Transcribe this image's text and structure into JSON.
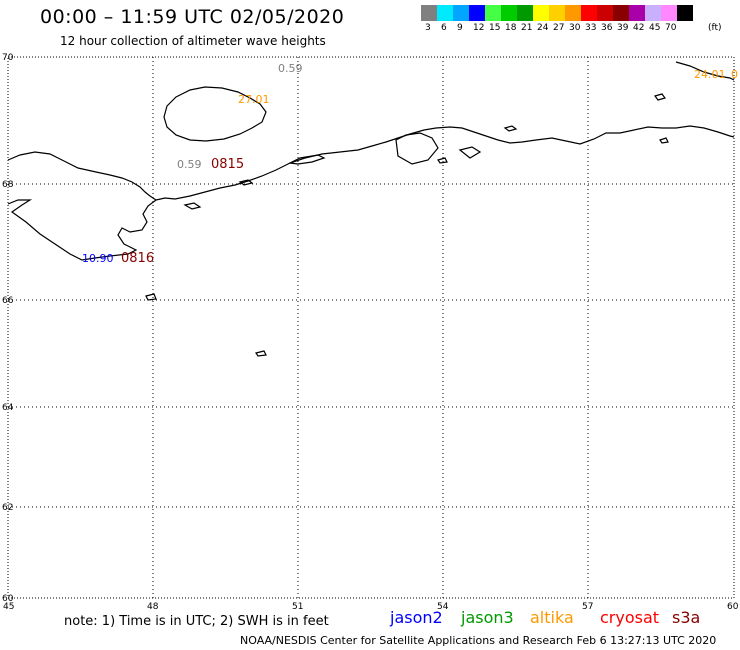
{
  "header": {
    "title": "00:00 – 11:59 UTC 02/05/2020",
    "subtitle": "12 hour collection of altimeter wave heights"
  },
  "legend": {
    "unit": "(ft)",
    "swatches": [
      {
        "label": "3",
        "color": "#808080"
      },
      {
        "label": "6",
        "color": "#00eaff"
      },
      {
        "label": "9",
        "color": "#00a6ff"
      },
      {
        "label": "12",
        "color": "#0000ff"
      },
      {
        "label": "15",
        "color": "#44ff44"
      },
      {
        "label": "18",
        "color": "#00cc00"
      },
      {
        "label": "21",
        "color": "#009900"
      },
      {
        "label": "24",
        "color": "#ffff00"
      },
      {
        "label": "27",
        "color": "#ffd000"
      },
      {
        "label": "30",
        "color": "#ff9900"
      },
      {
        "label": "33",
        "color": "#ff0000"
      },
      {
        "label": "36",
        "color": "#cc0000"
      },
      {
        "label": "39",
        "color": "#880000"
      },
      {
        "label": "42",
        "color": "#aa00aa"
      },
      {
        "label": "45",
        "color": "#c8b0ff"
      },
      {
        "label": "70",
        "color": "#ff88ff"
      },
      {
        "label": "",
        "color": "#000000"
      }
    ]
  },
  "map": {
    "lat_labels": [
      "70",
      "68",
      "66",
      "64",
      "62",
      "60"
    ],
    "lon_labels": [
      "45",
      "48",
      "51",
      "54",
      "57",
      "60"
    ],
    "annotations": [
      {
        "text": "0.59",
        "color": "#808080"
      },
      {
        "text": "27.01",
        "color": "#ff9900"
      },
      {
        "text": "0.59",
        "color": "#808080"
      },
      {
        "text": "0815",
        "color": "#880000"
      },
      {
        "text": "10.90",
        "color": "#0000ff"
      },
      {
        "text": "0816",
        "color": "#880000"
      },
      {
        "text": "24.01",
        "color": "#ff9900"
      },
      {
        "text": "0",
        "color": "#ff9900"
      }
    ]
  },
  "footer": {
    "note": "note: 1) Time is in UTC; 2) SWH is in feet",
    "satellites": [
      {
        "name": "jason2",
        "color": "#0000ff"
      },
      {
        "name": "jason3",
        "color": "#009900"
      },
      {
        "name": "altika",
        "color": "#ff9900"
      },
      {
        "name": "cryosat",
        "color": "#ff0000"
      },
      {
        "name": "s3a",
        "color": "#880000"
      }
    ],
    "credit": "NOAA/NESDIS Center for Satellite Applications and Research   Feb  6 13:27:13 UTC 2020"
  }
}
